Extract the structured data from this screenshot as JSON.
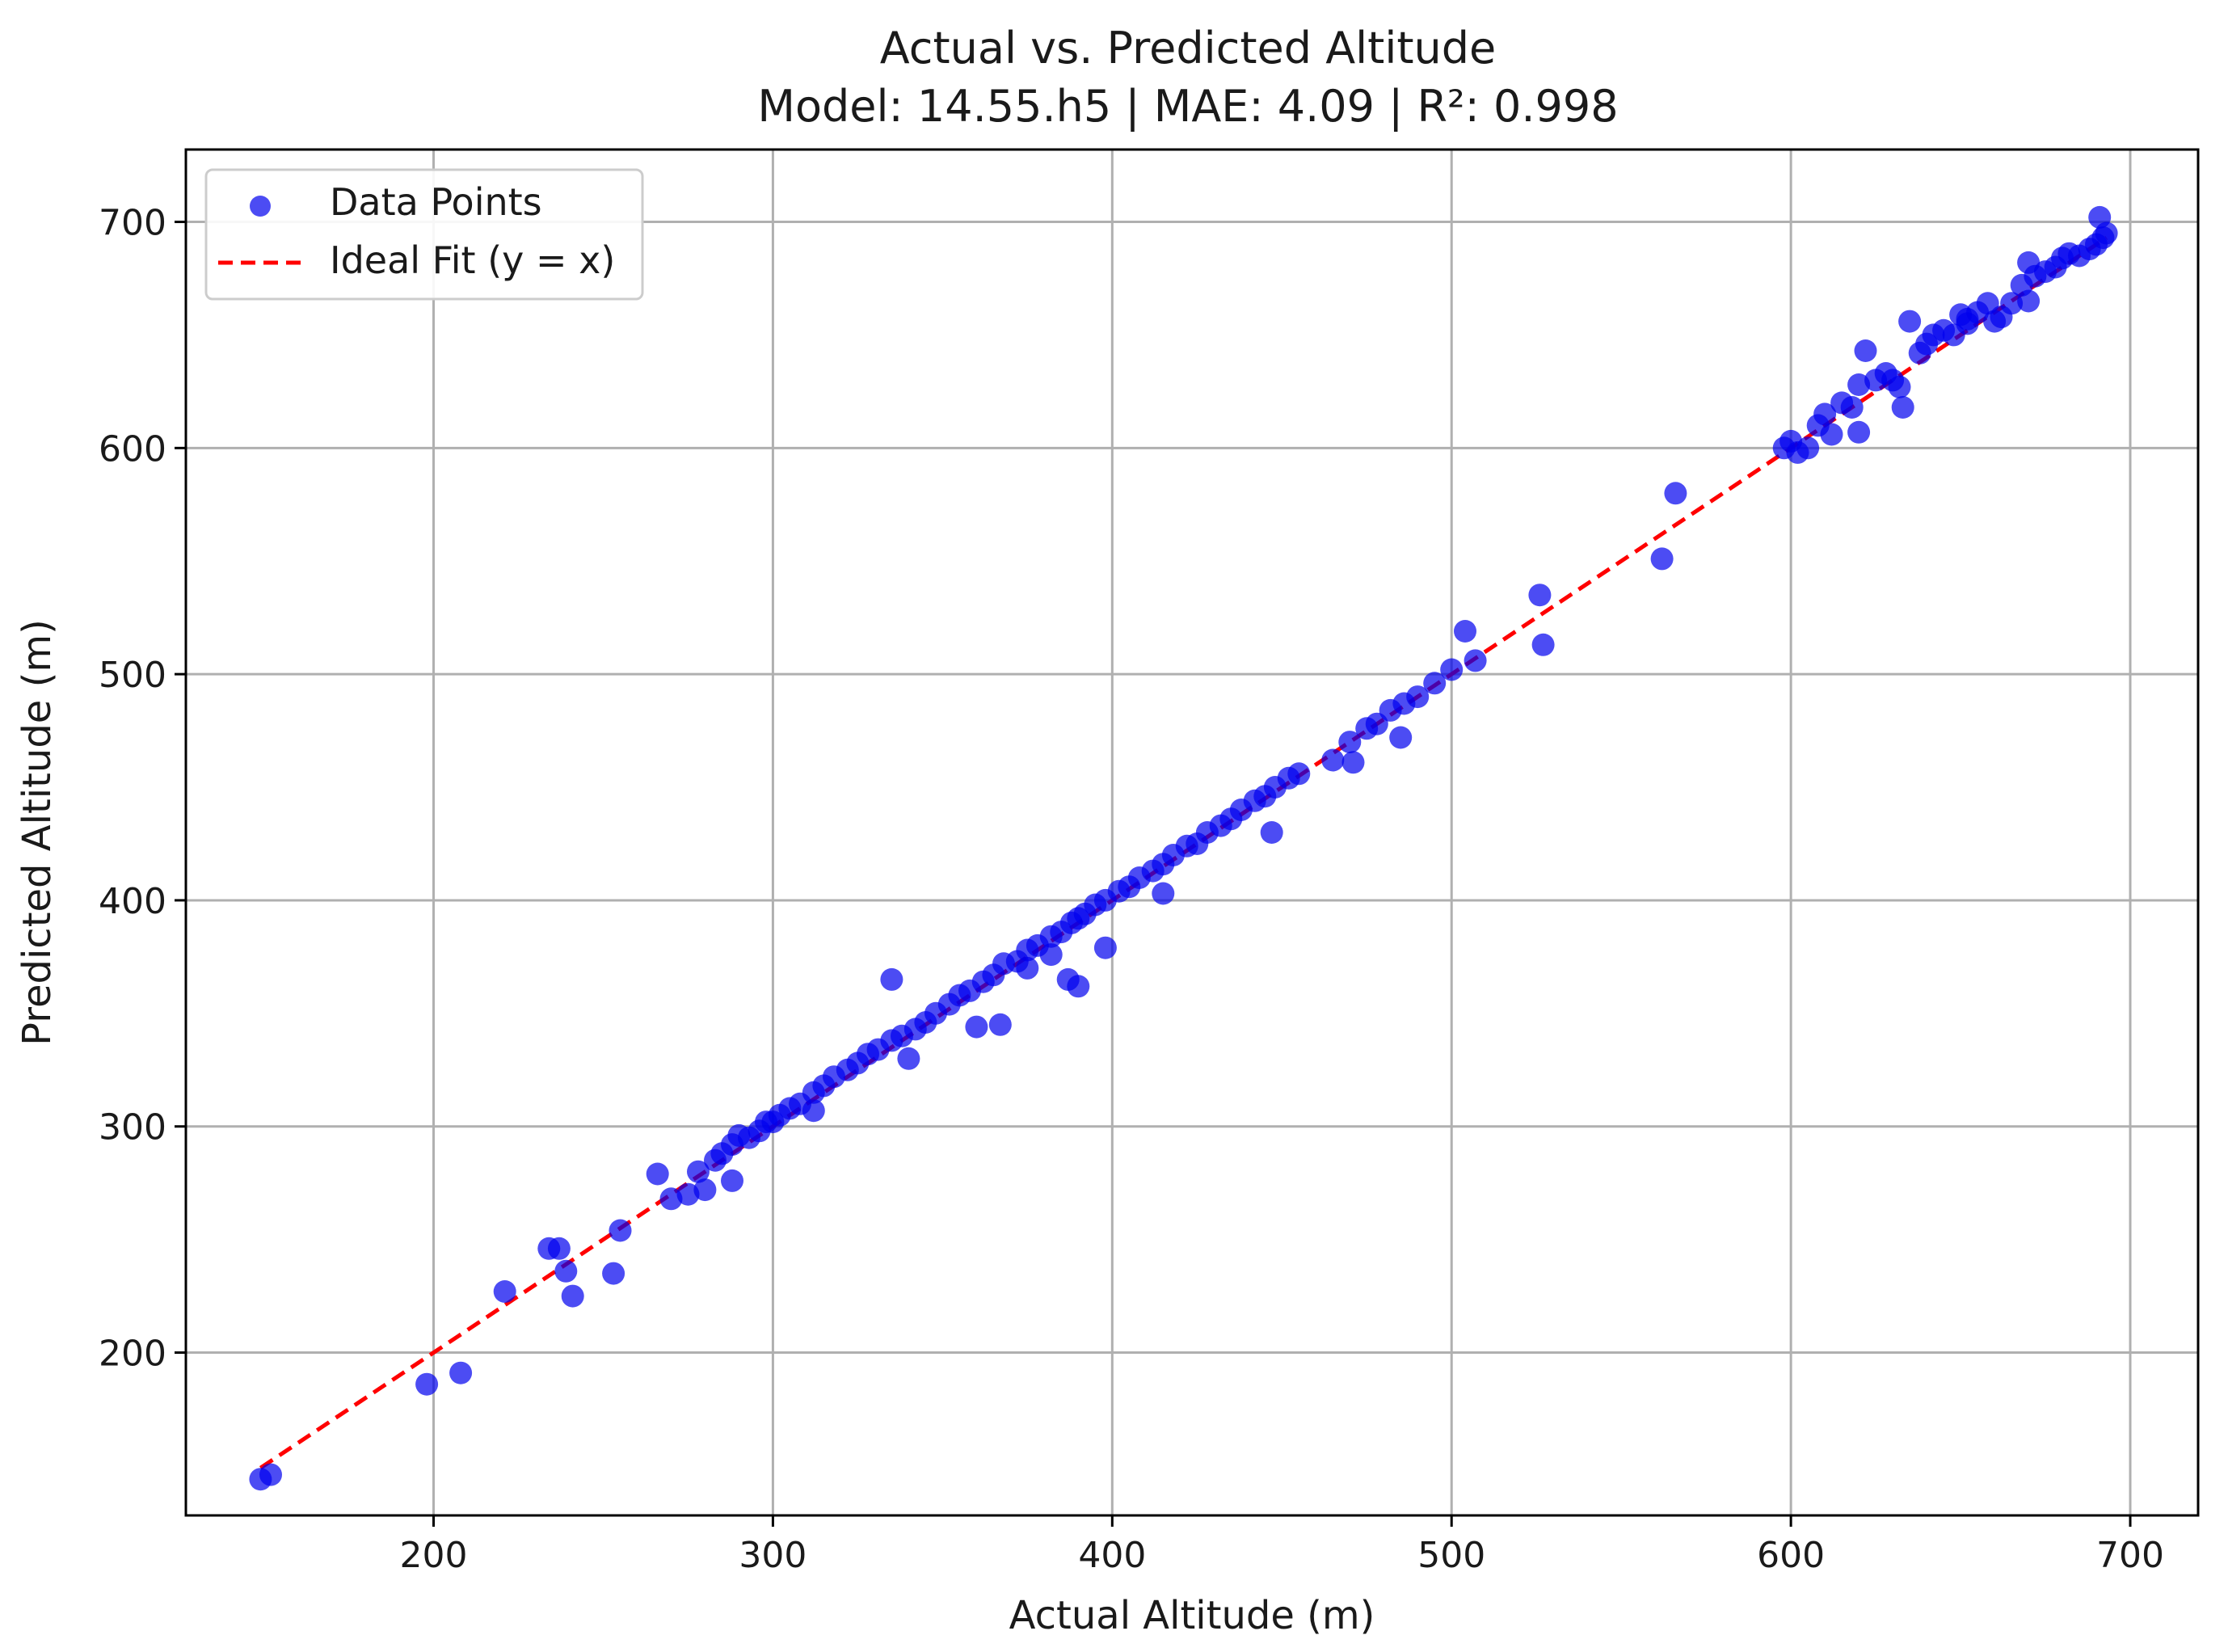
{
  "chart_data": {
    "type": "scatter",
    "title": "Actual vs. Predicted Altitude",
    "subtitle": "Model: 14.55.h5 | MAE: 4.09 | R²: 0.998",
    "xlabel": "Actual Altitude (m)",
    "ylabel": "Predicted Altitude (m)",
    "xlim": [
      127,
      720
    ],
    "ylim": [
      128,
      732
    ],
    "x_ticks": [
      200,
      300,
      400,
      500,
      600,
      700
    ],
    "y_ticks": [
      200,
      300,
      400,
      500,
      600,
      700
    ],
    "grid": true,
    "legend_position": "upper-left",
    "colors": {
      "points": "#0000ee",
      "ideal_line": "#ff0000",
      "grid": "#b0b0b0",
      "axes": "#000000"
    },
    "series": [
      {
        "name": "Data Points",
        "kind": "scatter",
        "x": [
          149,
          152,
          198,
          208,
          221,
          234,
          237,
          239,
          241,
          253,
          255,
          266,
          270,
          275,
          278,
          280,
          283,
          285,
          288,
          290,
          293,
          296,
          298,
          302,
          305,
          308,
          312,
          315,
          318,
          322,
          325,
          328,
          331,
          335,
          338,
          342,
          345,
          348,
          352,
          355,
          358,
          362,
          365,
          368,
          372,
          375,
          378,
          382,
          385,
          388,
          390,
          392,
          395,
          398,
          402,
          405,
          408,
          412,
          415,
          418,
          422,
          425,
          428,
          432,
          435,
          438,
          442,
          445,
          448,
          452,
          455,
          465,
          470,
          475,
          478,
          482,
          486,
          490,
          495,
          500,
          504,
          507,
          526,
          527,
          562,
          566,
          598,
          600,
          602,
          605,
          608,
          610,
          612,
          615,
          618,
          620,
          622,
          625,
          628,
          630,
          632,
          635,
          638,
          640,
          642,
          645,
          648,
          650,
          652,
          655,
          658,
          660,
          662,
          665,
          668,
          670,
          672,
          675,
          678,
          680,
          682,
          685,
          688,
          690,
          691,
          692,
          693,
          335,
          360,
          367,
          387,
          390,
          398,
          415,
          447,
          471,
          485,
          288,
          300,
          312,
          340,
          375,
          382,
          620,
          633,
          652,
          670
        ],
        "y": [
          144,
          146,
          186,
          191,
          227,
          246,
          246,
          236,
          225,
          235,
          254,
          279,
          268,
          270,
          280,
          272,
          285,
          288,
          292,
          296,
          295,
          298,
          302,
          305,
          308,
          310,
          315,
          318,
          322,
          325,
          328,
          332,
          334,
          338,
          340,
          343,
          346,
          350,
          354,
          358,
          360,
          364,
          367,
          372,
          373,
          378,
          380,
          384,
          386,
          390,
          392,
          394,
          398,
          400,
          404,
          406,
          410,
          413,
          416,
          420,
          424,
          425,
          430,
          433,
          436,
          440,
          444,
          446,
          450,
          454,
          456,
          462,
          470,
          476,
          478,
          484,
          487,
          490,
          496,
          502,
          519,
          506,
          535,
          513,
          551,
          580,
          600,
          603,
          598,
          600,
          610,
          615,
          606,
          620,
          618,
          628,
          643,
          630,
          633,
          630,
          627,
          656,
          642,
          646,
          650,
          652,
          650,
          659,
          657,
          660,
          664,
          656,
          658,
          664,
          672,
          682,
          676,
          678,
          680,
          684,
          686,
          685,
          688,
          690,
          702,
          693,
          695,
          365,
          344,
          345,
          365,
          362,
          379,
          403,
          430,
          461,
          472,
          276,
          302,
          307,
          330,
          370,
          376,
          607,
          618,
          655,
          665
        ]
      },
      {
        "name": "Ideal Fit (y = x)",
        "kind": "line",
        "style": "dashed",
        "x": [
          149,
          693
        ],
        "y": [
          149,
          693
        ]
      }
    ]
  }
}
